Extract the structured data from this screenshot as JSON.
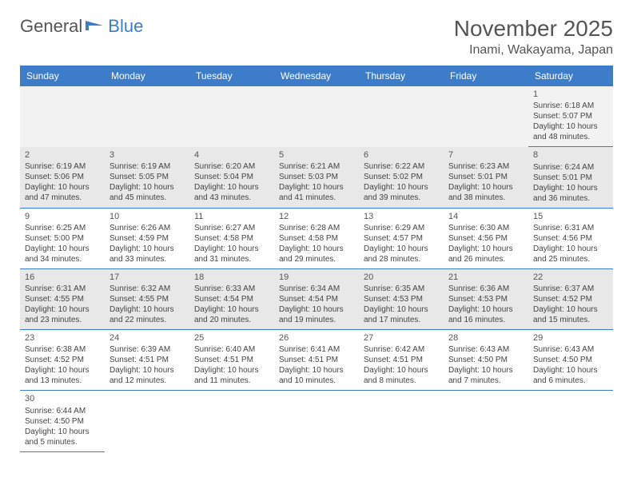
{
  "logo": {
    "text1": "General",
    "text2": "Blue"
  },
  "title": "November 2025",
  "location": "Inami, Wakayama, Japan",
  "colors": {
    "header_bg": "#3d7cc9",
    "header_text": "#ffffff",
    "row_bg": "#e8e8e8",
    "row_alt_bg": "#ffffff",
    "empty_bg": "#f2f2f2",
    "text": "#444444",
    "border": "#3d7cc9"
  },
  "day_headers": [
    "Sunday",
    "Monday",
    "Tuesday",
    "Wednesday",
    "Thursday",
    "Friday",
    "Saturday"
  ],
  "weeks": [
    [
      null,
      null,
      null,
      null,
      null,
      null,
      {
        "n": "1",
        "sr": "Sunrise: 6:18 AM",
        "ss": "Sunset: 5:07 PM",
        "d1": "Daylight: 10 hours",
        "d2": "and 48 minutes."
      }
    ],
    [
      {
        "n": "2",
        "sr": "Sunrise: 6:19 AM",
        "ss": "Sunset: 5:06 PM",
        "d1": "Daylight: 10 hours",
        "d2": "and 47 minutes."
      },
      {
        "n": "3",
        "sr": "Sunrise: 6:19 AM",
        "ss": "Sunset: 5:05 PM",
        "d1": "Daylight: 10 hours",
        "d2": "and 45 minutes."
      },
      {
        "n": "4",
        "sr": "Sunrise: 6:20 AM",
        "ss": "Sunset: 5:04 PM",
        "d1": "Daylight: 10 hours",
        "d2": "and 43 minutes."
      },
      {
        "n": "5",
        "sr": "Sunrise: 6:21 AM",
        "ss": "Sunset: 5:03 PM",
        "d1": "Daylight: 10 hours",
        "d2": "and 41 minutes."
      },
      {
        "n": "6",
        "sr": "Sunrise: 6:22 AM",
        "ss": "Sunset: 5:02 PM",
        "d1": "Daylight: 10 hours",
        "d2": "and 39 minutes."
      },
      {
        "n": "7",
        "sr": "Sunrise: 6:23 AM",
        "ss": "Sunset: 5:01 PM",
        "d1": "Daylight: 10 hours",
        "d2": "and 38 minutes."
      },
      {
        "n": "8",
        "sr": "Sunrise: 6:24 AM",
        "ss": "Sunset: 5:01 PM",
        "d1": "Daylight: 10 hours",
        "d2": "and 36 minutes."
      }
    ],
    [
      {
        "n": "9",
        "sr": "Sunrise: 6:25 AM",
        "ss": "Sunset: 5:00 PM",
        "d1": "Daylight: 10 hours",
        "d2": "and 34 minutes."
      },
      {
        "n": "10",
        "sr": "Sunrise: 6:26 AM",
        "ss": "Sunset: 4:59 PM",
        "d1": "Daylight: 10 hours",
        "d2": "and 33 minutes."
      },
      {
        "n": "11",
        "sr": "Sunrise: 6:27 AM",
        "ss": "Sunset: 4:58 PM",
        "d1": "Daylight: 10 hours",
        "d2": "and 31 minutes."
      },
      {
        "n": "12",
        "sr": "Sunrise: 6:28 AM",
        "ss": "Sunset: 4:58 PM",
        "d1": "Daylight: 10 hours",
        "d2": "and 29 minutes."
      },
      {
        "n": "13",
        "sr": "Sunrise: 6:29 AM",
        "ss": "Sunset: 4:57 PM",
        "d1": "Daylight: 10 hours",
        "d2": "and 28 minutes."
      },
      {
        "n": "14",
        "sr": "Sunrise: 6:30 AM",
        "ss": "Sunset: 4:56 PM",
        "d1": "Daylight: 10 hours",
        "d2": "and 26 minutes."
      },
      {
        "n": "15",
        "sr": "Sunrise: 6:31 AM",
        "ss": "Sunset: 4:56 PM",
        "d1": "Daylight: 10 hours",
        "d2": "and 25 minutes."
      }
    ],
    [
      {
        "n": "16",
        "sr": "Sunrise: 6:31 AM",
        "ss": "Sunset: 4:55 PM",
        "d1": "Daylight: 10 hours",
        "d2": "and 23 minutes."
      },
      {
        "n": "17",
        "sr": "Sunrise: 6:32 AM",
        "ss": "Sunset: 4:55 PM",
        "d1": "Daylight: 10 hours",
        "d2": "and 22 minutes."
      },
      {
        "n": "18",
        "sr": "Sunrise: 6:33 AM",
        "ss": "Sunset: 4:54 PM",
        "d1": "Daylight: 10 hours",
        "d2": "and 20 minutes."
      },
      {
        "n": "19",
        "sr": "Sunrise: 6:34 AM",
        "ss": "Sunset: 4:54 PM",
        "d1": "Daylight: 10 hours",
        "d2": "and 19 minutes."
      },
      {
        "n": "20",
        "sr": "Sunrise: 6:35 AM",
        "ss": "Sunset: 4:53 PM",
        "d1": "Daylight: 10 hours",
        "d2": "and 17 minutes."
      },
      {
        "n": "21",
        "sr": "Sunrise: 6:36 AM",
        "ss": "Sunset: 4:53 PM",
        "d1": "Daylight: 10 hours",
        "d2": "and 16 minutes."
      },
      {
        "n": "22",
        "sr": "Sunrise: 6:37 AM",
        "ss": "Sunset: 4:52 PM",
        "d1": "Daylight: 10 hours",
        "d2": "and 15 minutes."
      }
    ],
    [
      {
        "n": "23",
        "sr": "Sunrise: 6:38 AM",
        "ss": "Sunset: 4:52 PM",
        "d1": "Daylight: 10 hours",
        "d2": "and 13 minutes."
      },
      {
        "n": "24",
        "sr": "Sunrise: 6:39 AM",
        "ss": "Sunset: 4:51 PM",
        "d1": "Daylight: 10 hours",
        "d2": "and 12 minutes."
      },
      {
        "n": "25",
        "sr": "Sunrise: 6:40 AM",
        "ss": "Sunset: 4:51 PM",
        "d1": "Daylight: 10 hours",
        "d2": "and 11 minutes."
      },
      {
        "n": "26",
        "sr": "Sunrise: 6:41 AM",
        "ss": "Sunset: 4:51 PM",
        "d1": "Daylight: 10 hours",
        "d2": "and 10 minutes."
      },
      {
        "n": "27",
        "sr": "Sunrise: 6:42 AM",
        "ss": "Sunset: 4:51 PM",
        "d1": "Daylight: 10 hours",
        "d2": "and 8 minutes."
      },
      {
        "n": "28",
        "sr": "Sunrise: 6:43 AM",
        "ss": "Sunset: 4:50 PM",
        "d1": "Daylight: 10 hours",
        "d2": "and 7 minutes."
      },
      {
        "n": "29",
        "sr": "Sunrise: 6:43 AM",
        "ss": "Sunset: 4:50 PM",
        "d1": "Daylight: 10 hours",
        "d2": "and 6 minutes."
      }
    ],
    [
      {
        "n": "30",
        "sr": "Sunrise: 6:44 AM",
        "ss": "Sunset: 4:50 PM",
        "d1": "Daylight: 10 hours",
        "d2": "and 5 minutes."
      },
      null,
      null,
      null,
      null,
      null,
      null
    ]
  ]
}
